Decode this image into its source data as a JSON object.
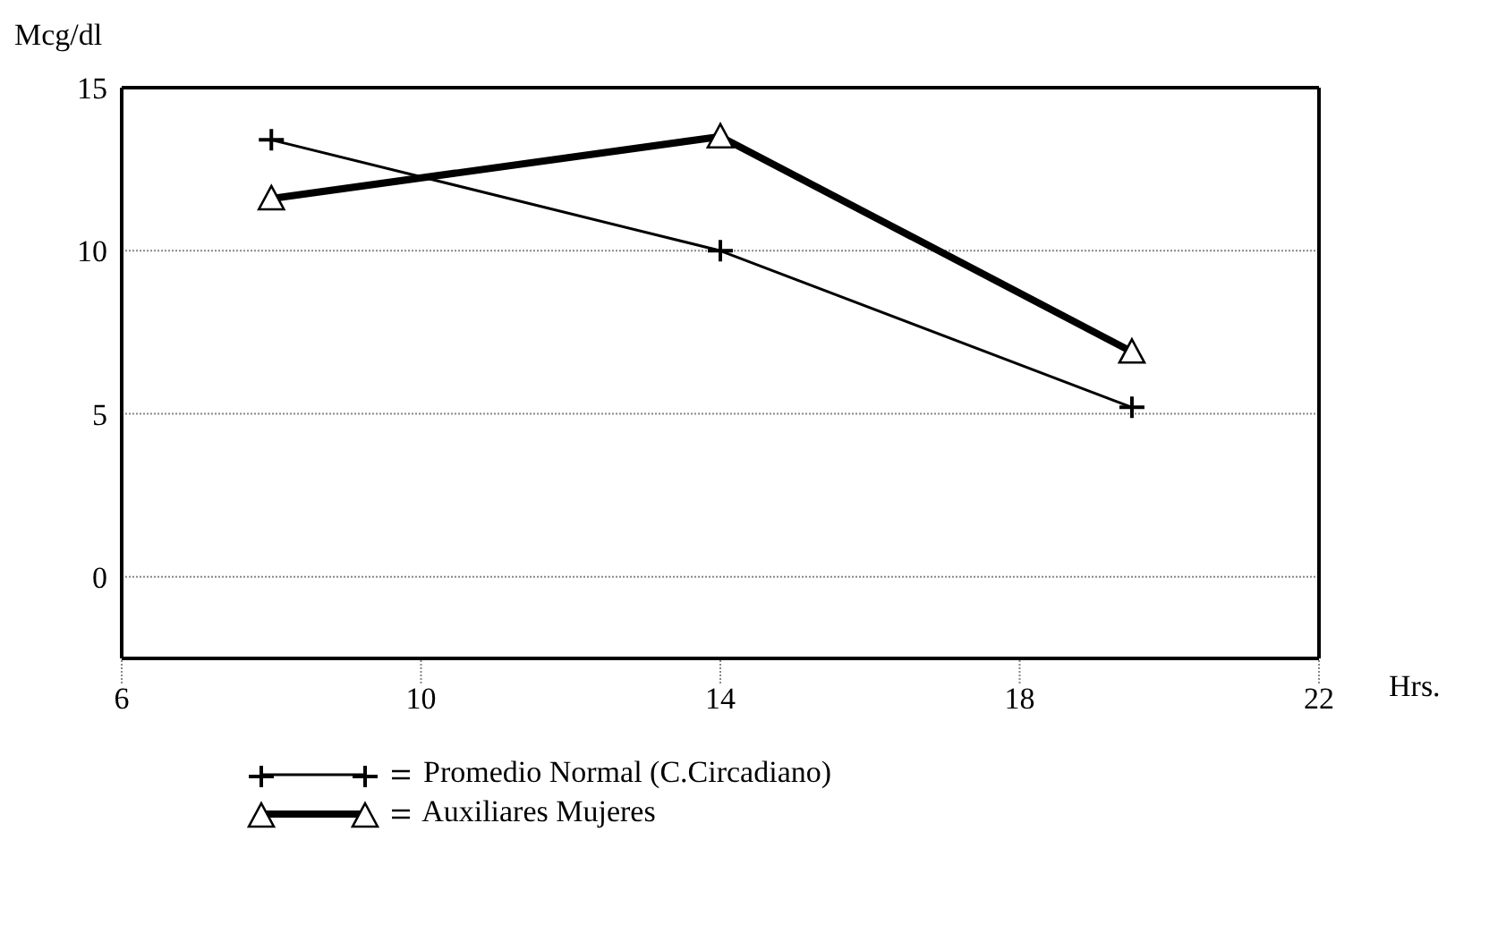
{
  "chart_data": {
    "type": "line",
    "xlabel": "Hrs.",
    "ylabel": "Mcg/dl",
    "xlim": [
      6,
      22
    ],
    "xticks": [
      6,
      10,
      14,
      18,
      22
    ],
    "ylim": [
      -2.5,
      15
    ],
    "yticks": [
      0,
      5,
      10,
      15
    ],
    "grid": "y",
    "legend": "bottom",
    "series": [
      {
        "name": "Promedio Normal (C.Circadiano)",
        "color": "#000000",
        "x": [
          8,
          14,
          19.5
        ],
        "values": [
          13.4,
          10,
          5.2
        ],
        "marker": "cross"
      },
      {
        "name": "Auxiliares Mujeres",
        "color": "#000000",
        "x": [
          8,
          14,
          19.5
        ],
        "values": [
          11.6,
          13.5,
          6.9
        ],
        "marker": "triangle"
      }
    ]
  }
}
